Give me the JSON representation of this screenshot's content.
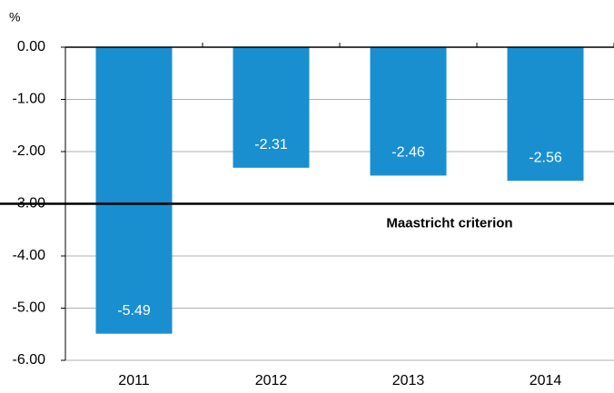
{
  "chart_data": {
    "type": "bar",
    "y_axis_label": "%",
    "categories": [
      "2011",
      "2012",
      "2013",
      "2014"
    ],
    "values": [
      -5.49,
      -2.31,
      -2.46,
      -2.56
    ],
    "color": "#1a8fd0",
    "ylim": [
      -6,
      0
    ],
    "yticks": [
      {
        "value": 0,
        "label": "0.00"
      },
      {
        "value": -1,
        "label": "-1.00"
      },
      {
        "value": -2,
        "label": "-2.00"
      },
      {
        "value": -3,
        "label": "-3.00"
      },
      {
        "value": -4,
        "label": "-4.00"
      },
      {
        "value": -5,
        "label": "-5.00"
      },
      {
        "value": -6,
        "label": "-6.00"
      }
    ],
    "grid": true,
    "reference_line": {
      "value": -3,
      "label": "Maastricht criterion"
    }
  }
}
